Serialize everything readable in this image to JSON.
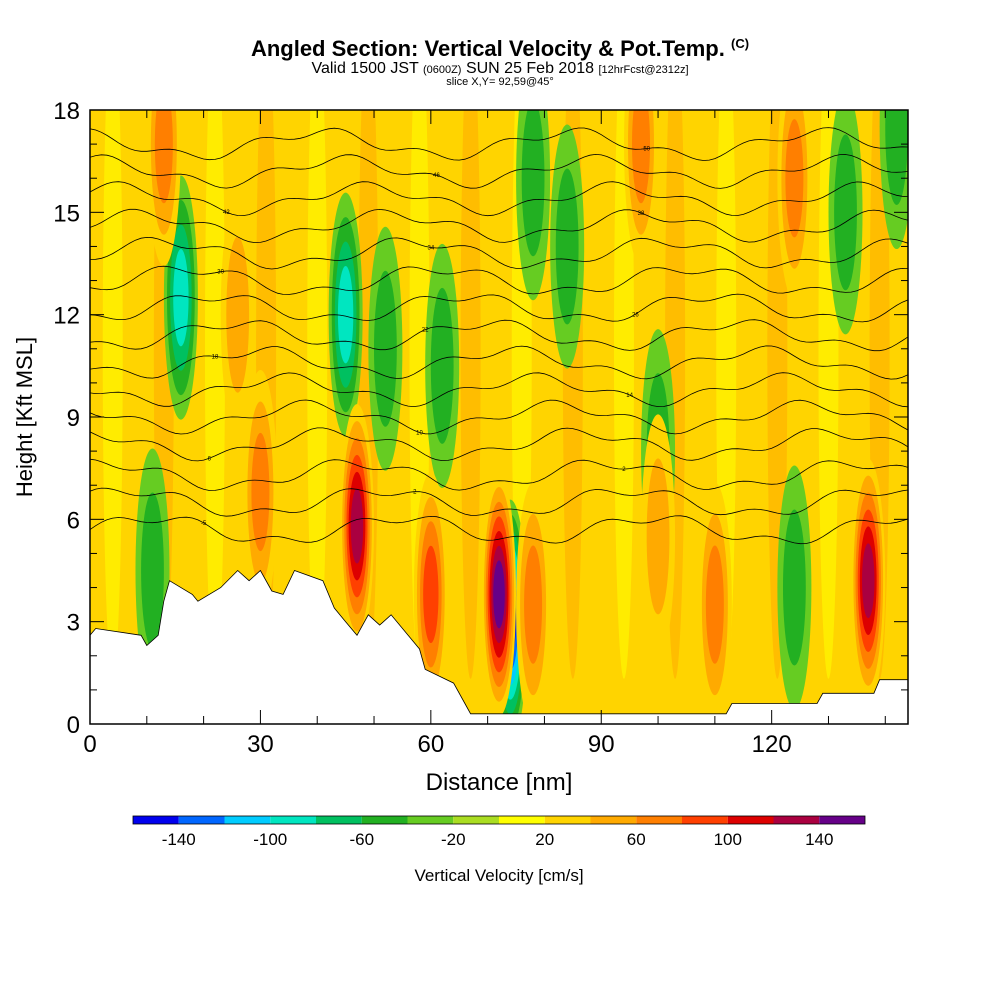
{
  "header": {
    "title": "Angled Section: Vertical Velocity & Pot.Temp.",
    "title_unit": "(C)",
    "valid_prefix": "Valid 1500 JST",
    "valid_utc": "(0600Z)",
    "valid_date": "SUN 25 Feb 2018",
    "forecast": "[12hrFcst@2312z]",
    "slice": "slice X,Y= 92,59@45°"
  },
  "chart_data": {
    "type": "heatmap",
    "xlabel": "Distance [nm]",
    "ylabel": "Height [Kft MSL]",
    "xlim": [
      0,
      144
    ],
    "ylim": [
      0,
      18
    ],
    "x_ticks": [
      0,
      30,
      60,
      90,
      120
    ],
    "y_ticks": [
      0,
      3,
      6,
      9,
      12,
      15,
      18
    ],
    "background_level": 20,
    "colorbar": {
      "label": "Vertical Velocity [cm/s]",
      "tick_labels": [
        -140,
        -100,
        -60,
        -20,
        20,
        60,
        100,
        140
      ],
      "levels": [
        -160,
        -140,
        -120,
        -100,
        -80,
        -60,
        -40,
        -20,
        0,
        20,
        40,
        60,
        80,
        100,
        120,
        140,
        160
      ],
      "colors": [
        "#0000ee",
        "#0066ff",
        "#00ccff",
        "#00e6c0",
        "#00c060",
        "#22b022",
        "#66cc22",
        "#aadd22",
        "#ffff00",
        "#ffd400",
        "#ffaa00",
        "#ff7f00",
        "#ff4000",
        "#dd0000",
        "#aa0040",
        "#660088"
      ]
    },
    "terrain_heights_kft": [
      [
        0,
        2.6
      ],
      [
        1,
        2.8
      ],
      [
        9,
        2.6
      ],
      [
        10,
        2.3
      ],
      [
        12,
        2.6
      ],
      [
        13,
        3.6
      ],
      [
        14,
        4.2
      ],
      [
        18,
        3.8
      ],
      [
        19,
        3.6
      ],
      [
        23,
        4.0
      ],
      [
        26,
        4.5
      ],
      [
        28,
        4.2
      ],
      [
        30,
        4.5
      ],
      [
        32,
        3.9
      ],
      [
        34,
        3.8
      ],
      [
        36,
        4.5
      ],
      [
        41,
        4.2
      ],
      [
        43,
        3.4
      ],
      [
        45,
        3.0
      ],
      [
        47,
        2.6
      ],
      [
        49,
        3.2
      ],
      [
        51,
        2.9
      ],
      [
        53,
        3.2
      ],
      [
        56,
        2.6
      ],
      [
        58,
        2.2
      ],
      [
        59,
        1.6
      ],
      [
        64,
        1.2
      ],
      [
        66,
        0.6
      ],
      [
        67,
        0.3
      ],
      [
        94,
        0.3
      ],
      [
        112,
        0.3
      ],
      [
        113,
        0.6
      ],
      [
        128,
        0.6
      ],
      [
        129,
        0.9
      ],
      [
        138,
        0.9
      ],
      [
        139,
        1.3
      ],
      [
        144,
        1.3
      ]
    ],
    "updraft_cells": [
      {
        "x": 13,
        "y": 17.0,
        "w": 60
      },
      {
        "x": 26,
        "y": 12.0,
        "w": 30
      },
      {
        "x": 30,
        "y": 6.8,
        "w": 50
      },
      {
        "x": 47,
        "y": 5.8,
        "w": 110
      },
      {
        "x": 60,
        "y": 3.8,
        "w": 70
      },
      {
        "x": 72,
        "y": 3.8,
        "w": 140
      },
      {
        "x": 78,
        "y": 3.5,
        "w": 60
      },
      {
        "x": 97,
        "y": 17.0,
        "w": 60
      },
      {
        "x": 100,
        "y": 5.5,
        "w": 40
      },
      {
        "x": 110,
        "y": 3.5,
        "w": 50
      },
      {
        "x": 124,
        "y": 16.0,
        "w": 60
      },
      {
        "x": 137,
        "y": 4.2,
        "w": 110
      }
    ],
    "downdraft_cells": [
      {
        "x": 16,
        "y": 12.5,
        "w": -70
      },
      {
        "x": 45,
        "y": 12.0,
        "w": -70
      },
      {
        "x": 52,
        "y": 11.0,
        "w": -30
      },
      {
        "x": 62,
        "y": 10.5,
        "w": -30
      },
      {
        "x": 74,
        "y": 3.0,
        "w": -140
      },
      {
        "x": 78,
        "y": 16.0,
        "w": -30
      },
      {
        "x": 84,
        "y": 14.0,
        "w": -30
      },
      {
        "x": 100,
        "y": 8.0,
        "w": -30
      },
      {
        "x": 124,
        "y": 4.0,
        "w": -30
      },
      {
        "x": 133,
        "y": 15.0,
        "w": -30
      },
      {
        "x": 11,
        "y": 4.5,
        "w": -30
      },
      {
        "x": 142,
        "y": 17.5,
        "w": -30
      }
    ],
    "theta_contours": [
      {
        "label": "-5",
        "y0": 5.7
      },
      {
        "label": "-2",
        "y0": 6.5
      },
      {
        "label": "2",
        "y0": 7.3
      },
      {
        "label": "6",
        "y0": 8.2
      },
      {
        "label": "10",
        "y0": 9.0
      },
      {
        "label": "14",
        "y0": 9.8
      },
      {
        "label": "18",
        "y0": 10.6
      },
      {
        "label": "22",
        "y0": 11.4
      },
      {
        "label": "26",
        "y0": 12.2
      },
      {
        "label": "30",
        "y0": 13.0
      },
      {
        "label": "34",
        "y0": 13.8
      },
      {
        "label": "38",
        "y0": 14.6
      },
      {
        "label": "42",
        "y0": 15.4
      },
      {
        "label": "46",
        "y0": 16.2
      },
      {
        "label": "50",
        "y0": 17.0
      }
    ]
  }
}
